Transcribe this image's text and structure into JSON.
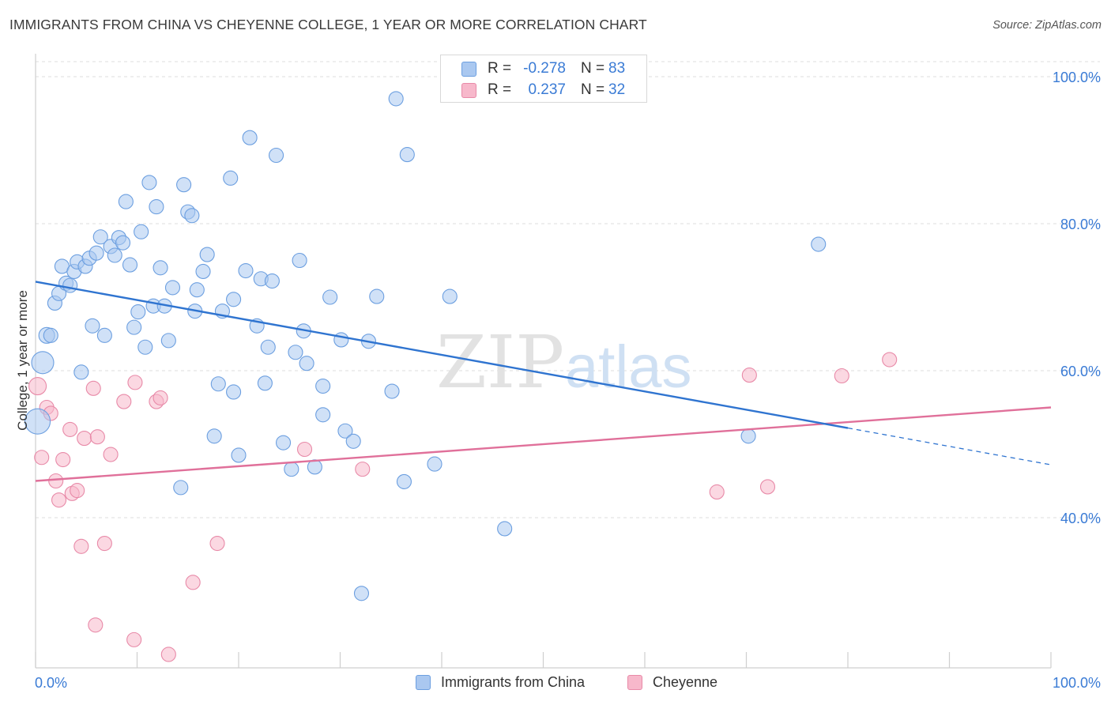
{
  "title": "IMMIGRANTS FROM CHINA VS CHEYENNE COLLEGE, 1 YEAR OR MORE CORRELATION CHART",
  "source": "Source: ZipAtlas.com",
  "watermark": {
    "zip": "ZIP",
    "atlas": "atlas"
  },
  "legend_top": {
    "rows": [
      {
        "r_label": "R =",
        "r_value": "-0.278",
        "n_label": "N =",
        "n_value": "83",
        "color": "#aac8f0"
      },
      {
        "r_label": "R =",
        "r_value": "0.237",
        "n_label": "N =",
        "n_value": "32",
        "color": "#f7b8cb"
      }
    ]
  },
  "legend_bottom": [
    {
      "label": "Immigrants from China",
      "color": "#aac8f0"
    },
    {
      "label": "Cheyenne",
      "color": "#f7b8cb"
    }
  ],
  "colors": {
    "blue_fill": "#aac8f0",
    "blue_stroke": "#6c9fe0",
    "blue_line": "#2f74d0",
    "pink_fill": "#f7b8cb",
    "pink_stroke": "#e88aa8",
    "pink_line": "#e0709a",
    "tick_label": "#3a7bd5",
    "grid": "#dcdcdc"
  },
  "chart_data": {
    "type": "scatter",
    "title": "IMMIGRANTS FROM CHINA VS CHEYENNE COLLEGE, 1 YEAR OR MORE CORRELATION CHART",
    "xlabel": "",
    "ylabel": "College, 1 year or more",
    "xlim": [
      0,
      100
    ],
    "ylim": [
      20,
      103
    ],
    "x_tick_labels": [
      "0.0%",
      "100.0%"
    ],
    "y_ticks": [
      40,
      60,
      80,
      100
    ],
    "y_tick_labels": [
      "40.0%",
      "60.0%",
      "80.0%",
      "100.0%"
    ],
    "grid": true,
    "legend_position": "top-center",
    "series": [
      {
        "name": "Immigrants from China",
        "color": "#aac8f0",
        "r": -0.278,
        "n": 83,
        "trend": {
          "x": [
            0,
            80
          ],
          "y": [
            72.1,
            52.2
          ]
        },
        "trend_dashed": {
          "x": [
            80,
            100
          ],
          "y": [
            52.2,
            47.2
          ]
        },
        "points": [
          [
            0.7,
            61.1,
            14
          ],
          [
            1.1,
            64.8,
            10
          ],
          [
            1.5,
            64.8,
            9
          ],
          [
            1.9,
            69.2,
            9
          ],
          [
            2.3,
            70.5,
            9
          ],
          [
            2.6,
            74.2,
            9
          ],
          [
            3.0,
            71.9,
            9
          ],
          [
            3.4,
            71.6,
            9
          ],
          [
            3.8,
            73.5,
            9
          ],
          [
            4.1,
            74.8,
            9
          ],
          [
            4.5,
            59.8,
            9
          ],
          [
            4.9,
            74.2,
            9
          ],
          [
            5.3,
            75.3,
            9
          ],
          [
            5.6,
            66.1,
            9
          ],
          [
            6.0,
            76.0,
            9
          ],
          [
            6.4,
            78.2,
            9
          ],
          [
            6.8,
            64.8,
            9
          ],
          [
            7.4,
            76.9,
            9
          ],
          [
            7.8,
            75.7,
            9
          ],
          [
            8.2,
            78.1,
            9
          ],
          [
            8.6,
            77.4,
            9
          ],
          [
            8.9,
            83.0,
            9
          ],
          [
            9.3,
            74.4,
            9
          ],
          [
            9.7,
            65.9,
            9
          ],
          [
            10.1,
            68.0,
            9
          ],
          [
            10.4,
            78.9,
            9
          ],
          [
            10.8,
            63.2,
            9
          ],
          [
            11.2,
            85.6,
            9
          ],
          [
            11.6,
            68.8,
            9
          ],
          [
            11.9,
            82.3,
            9
          ],
          [
            12.3,
            74.0,
            9
          ],
          [
            12.7,
            68.8,
            9
          ],
          [
            13.1,
            64.1,
            9
          ],
          [
            13.5,
            71.3,
            9
          ],
          [
            14.3,
            44.1,
            9
          ],
          [
            14.6,
            85.3,
            9
          ],
          [
            15.0,
            81.6,
            9
          ],
          [
            15.4,
            81.1,
            9
          ],
          [
            15.7,
            68.1,
            9
          ],
          [
            15.9,
            71.0,
            9
          ],
          [
            16.5,
            73.5,
            9
          ],
          [
            16.9,
            75.8,
            9
          ],
          [
            17.6,
            51.1,
            9
          ],
          [
            18.0,
            58.2,
            9
          ],
          [
            18.4,
            68.1,
            9
          ],
          [
            19.2,
            86.2,
            9
          ],
          [
            19.5,
            57.1,
            9
          ],
          [
            19.5,
            69.7,
            9
          ],
          [
            20.0,
            48.5,
            9
          ],
          [
            20.7,
            73.6,
            9
          ],
          [
            21.1,
            91.7,
            9
          ],
          [
            21.8,
            66.1,
            9
          ],
          [
            22.2,
            72.5,
            9
          ],
          [
            22.6,
            58.3,
            9
          ],
          [
            22.9,
            63.2,
            9
          ],
          [
            23.3,
            72.2,
            9
          ],
          [
            23.7,
            89.3,
            9
          ],
          [
            24.4,
            50.2,
            9
          ],
          [
            25.2,
            46.6,
            9
          ],
          [
            25.6,
            62.5,
            9
          ],
          [
            26.0,
            75.0,
            9
          ],
          [
            26.4,
            65.4,
            9
          ],
          [
            26.7,
            61.0,
            9
          ],
          [
            27.5,
            46.9,
            9
          ],
          [
            28.3,
            57.9,
            9
          ],
          [
            28.3,
            54.0,
            9
          ],
          [
            29.0,
            70.0,
            9
          ],
          [
            30.1,
            64.2,
            9
          ],
          [
            30.5,
            51.8,
            9
          ],
          [
            31.3,
            50.4,
            9
          ],
          [
            32.1,
            29.7,
            9
          ],
          [
            32.8,
            64.0,
            9
          ],
          [
            33.6,
            70.1,
            9
          ],
          [
            35.1,
            57.2,
            9
          ],
          [
            35.5,
            97.0,
            9
          ],
          [
            36.3,
            44.9,
            9
          ],
          [
            36.6,
            89.4,
            9
          ],
          [
            39.3,
            47.3,
            9
          ],
          [
            40.8,
            70.1,
            9
          ],
          [
            46.2,
            38.5,
            9
          ],
          [
            70.2,
            51.1,
            9
          ],
          [
            77.1,
            77.2,
            9
          ],
          [
            0.2,
            53.1,
            16
          ]
        ]
      },
      {
        "name": "Cheyenne",
        "color": "#f7b8cb",
        "r": 0.237,
        "n": 32,
        "trend": {
          "x": [
            0,
            100
          ],
          "y": [
            45.0,
            55.0
          ]
        },
        "points": [
          [
            0.2,
            57.9,
            11
          ],
          [
            0.6,
            48.2,
            9
          ],
          [
            1.1,
            55.0,
            9
          ],
          [
            1.5,
            54.2,
            9
          ],
          [
            2.0,
            45.0,
            9
          ],
          [
            2.3,
            42.4,
            9
          ],
          [
            2.7,
            47.9,
            9
          ],
          [
            3.4,
            52.0,
            9
          ],
          [
            3.6,
            43.3,
            9
          ],
          [
            4.1,
            43.7,
            9
          ],
          [
            4.5,
            36.1,
            9
          ],
          [
            4.8,
            50.8,
            9
          ],
          [
            5.7,
            57.6,
            9
          ],
          [
            5.9,
            25.4,
            9
          ],
          [
            6.1,
            51.0,
            9
          ],
          [
            6.8,
            36.5,
            9
          ],
          [
            7.4,
            48.6,
            9
          ],
          [
            8.7,
            55.8,
            9
          ],
          [
            9.7,
            23.4,
            9
          ],
          [
            9.8,
            58.4,
            9
          ],
          [
            11.9,
            55.8,
            9
          ],
          [
            12.3,
            56.3,
            9
          ],
          [
            13.1,
            21.4,
            9
          ],
          [
            15.5,
            31.2,
            9
          ],
          [
            17.9,
            36.5,
            9
          ],
          [
            26.5,
            49.3,
            9
          ],
          [
            32.2,
            46.6,
            9
          ],
          [
            67.1,
            43.5,
            9
          ],
          [
            70.3,
            59.4,
            9
          ],
          [
            72.1,
            44.2,
            9
          ],
          [
            79.4,
            59.3,
            9
          ],
          [
            84.1,
            61.5,
            9
          ]
        ]
      }
    ]
  }
}
